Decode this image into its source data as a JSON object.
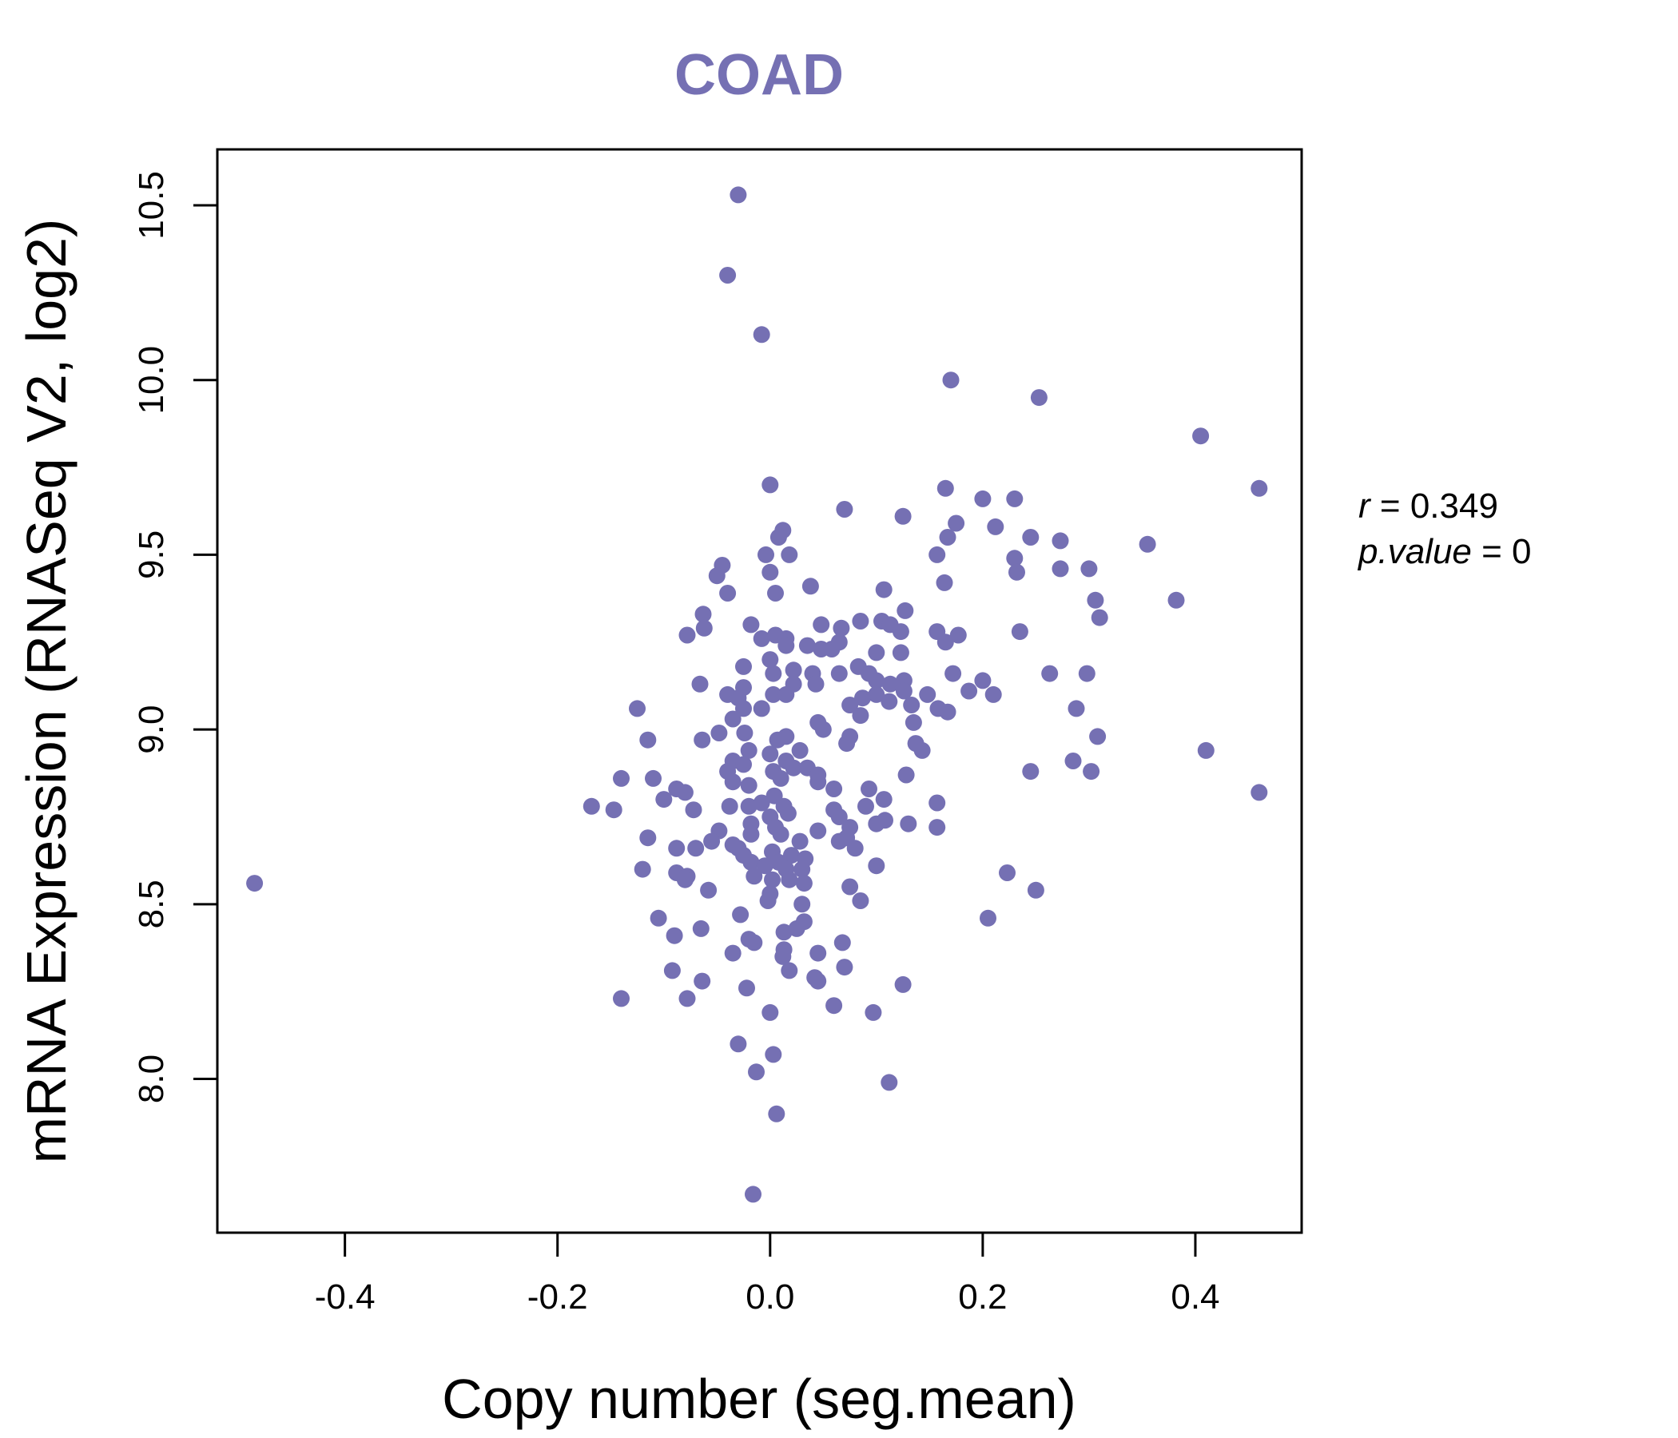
{
  "chart_data": {
    "type": "scatter",
    "title": "COAD",
    "xlabel": "Copy number (seg.mean)",
    "ylabel": "mRNA Expression (RNASeq V2, log2)",
    "xlim": [
      -0.52,
      0.5
    ],
    "ylim": [
      7.56,
      10.66
    ],
    "xticks": [
      -0.4,
      -0.2,
      0.0,
      0.2,
      0.4
    ],
    "xtick_labels": [
      "-0.4",
      "-0.2",
      "0.0",
      "0.2",
      "0.4"
    ],
    "yticks": [
      8.0,
      8.5,
      9.0,
      9.5,
      10.0,
      10.5
    ],
    "ytick_labels": [
      "8.0",
      "8.5",
      "9.0",
      "9.5",
      "10.0",
      "10.5"
    ],
    "grid": false,
    "point_color": "#7570b3",
    "annotation": {
      "r_label": "r",
      "r_value": "0.349",
      "p_label": "p.value",
      "p_value": "0"
    },
    "series": [
      {
        "name": "samples",
        "points": [
          [
            -0.485,
            8.56
          ],
          [
            -0.03,
            10.53
          ],
          [
            -0.04,
            10.3
          ],
          [
            -0.008,
            10.13
          ],
          [
            0.17,
            10.0
          ],
          [
            0.253,
            9.95
          ],
          [
            0.405,
            9.84
          ],
          [
            0.46,
            9.69
          ],
          [
            0.0,
            9.7
          ],
          [
            0.165,
            9.69
          ],
          [
            0.2,
            9.66
          ],
          [
            0.23,
            9.66
          ],
          [
            0.07,
            9.63
          ],
          [
            0.125,
            9.61
          ],
          [
            0.175,
            9.59
          ],
          [
            0.212,
            9.58
          ],
          [
            0.012,
            9.57
          ],
          [
            0.008,
            9.55
          ],
          [
            0.167,
            9.55
          ],
          [
            0.245,
            9.55
          ],
          [
            0.273,
            9.54
          ],
          [
            0.355,
            9.53
          ],
          [
            -0.004,
            9.5
          ],
          [
            0.018,
            9.5
          ],
          [
            0.157,
            9.5
          ],
          [
            0.23,
            9.49
          ],
          [
            -0.045,
            9.47
          ],
          [
            0.0,
            9.45
          ],
          [
            0.232,
            9.45
          ],
          [
            0.273,
            9.46
          ],
          [
            0.3,
            9.46
          ],
          [
            -0.05,
            9.44
          ],
          [
            -0.04,
            9.39
          ],
          [
            0.005,
            9.39
          ],
          [
            0.038,
            9.41
          ],
          [
            0.107,
            9.4
          ],
          [
            0.164,
            9.42
          ],
          [
            0.306,
            9.37
          ],
          [
            0.382,
            9.37
          ],
          [
            0.31,
            9.32
          ],
          [
            -0.063,
            9.33
          ],
          [
            0.127,
            9.34
          ],
          [
            -0.018,
            9.3
          ],
          [
            -0.062,
            9.29
          ],
          [
            -0.078,
            9.27
          ],
          [
            0.048,
            9.3
          ],
          [
            0.067,
            9.29
          ],
          [
            0.085,
            9.31
          ],
          [
            0.105,
            9.31
          ],
          [
            0.113,
            9.3
          ],
          [
            0.123,
            9.28
          ],
          [
            0.157,
            9.28
          ],
          [
            0.177,
            9.27
          ],
          [
            0.235,
            9.28
          ],
          [
            -0.008,
            9.26
          ],
          [
            0.005,
            9.27
          ],
          [
            0.015,
            9.26
          ],
          [
            0.035,
            9.24
          ],
          [
            0.048,
            9.23
          ],
          [
            0.058,
            9.23
          ],
          [
            0.065,
            9.25
          ],
          [
            0.015,
            9.24
          ],
          [
            0.1,
            9.22
          ],
          [
            0.123,
            9.22
          ],
          [
            0.165,
            9.25
          ],
          [
            0.0,
            9.2
          ],
          [
            -0.025,
            9.18
          ],
          [
            0.022,
            9.17
          ],
          [
            0.003,
            9.16
          ],
          [
            0.04,
            9.16
          ],
          [
            0.065,
            9.16
          ],
          [
            0.083,
            9.18
          ],
          [
            0.093,
            9.16
          ],
          [
            0.172,
            9.16
          ],
          [
            0.263,
            9.16
          ],
          [
            0.298,
            9.16
          ],
          [
            -0.066,
            9.13
          ],
          [
            -0.025,
            9.12
          ],
          [
            0.022,
            9.13
          ],
          [
            0.043,
            9.13
          ],
          [
            0.1,
            9.14
          ],
          [
            0.113,
            9.13
          ],
          [
            0.126,
            9.14
          ],
          [
            0.2,
            9.14
          ],
          [
            -0.04,
            9.1
          ],
          [
            -0.03,
            9.09
          ],
          [
            0.003,
            9.1
          ],
          [
            0.015,
            9.1
          ],
          [
            0.075,
            9.07
          ],
          [
            0.087,
            9.09
          ],
          [
            0.1,
            9.1
          ],
          [
            0.112,
            9.08
          ],
          [
            0.126,
            9.11
          ],
          [
            0.148,
            9.1
          ],
          [
            0.187,
            9.11
          ],
          [
            0.21,
            9.1
          ],
          [
            -0.025,
            9.06
          ],
          [
            -0.008,
            9.06
          ],
          [
            0.133,
            9.07
          ],
          [
            0.158,
            9.06
          ],
          [
            0.167,
            9.05
          ],
          [
            -0.125,
            9.06
          ],
          [
            -0.035,
            9.03
          ],
          [
            0.085,
            9.04
          ],
          [
            0.135,
            9.02
          ],
          [
            0.288,
            9.06
          ],
          [
            0.045,
            9.02
          ],
          [
            0.05,
            9.0
          ],
          [
            -0.115,
            8.97
          ],
          [
            -0.064,
            8.97
          ],
          [
            -0.024,
            8.99
          ],
          [
            -0.048,
            8.99
          ],
          [
            0.007,
            8.97
          ],
          [
            0.015,
            8.98
          ],
          [
            0.075,
            8.98
          ],
          [
            0.072,
            8.96
          ],
          [
            0.137,
            8.96
          ],
          [
            0.143,
            8.94
          ],
          [
            0.308,
            8.98
          ],
          [
            0.41,
            8.94
          ],
          [
            -0.02,
            8.94
          ],
          [
            0.0,
            8.93
          ],
          [
            0.028,
            8.94
          ],
          [
            -0.035,
            8.91
          ],
          [
            -0.025,
            8.9
          ],
          [
            0.015,
            8.91
          ],
          [
            0.022,
            8.89
          ],
          [
            0.035,
            8.89
          ],
          [
            0.285,
            8.91
          ],
          [
            -0.04,
            8.88
          ],
          [
            0.003,
            8.88
          ],
          [
            0.01,
            8.86
          ],
          [
            0.045,
            8.87
          ],
          [
            0.128,
            8.87
          ],
          [
            0.245,
            8.88
          ],
          [
            0.302,
            8.88
          ],
          [
            -0.14,
            8.86
          ],
          [
            -0.11,
            8.86
          ],
          [
            -0.035,
            8.85
          ],
          [
            -0.02,
            8.84
          ],
          [
            0.045,
            8.85
          ],
          [
            0.06,
            8.83
          ],
          [
            0.093,
            8.83
          ],
          [
            -0.088,
            8.83
          ],
          [
            -0.08,
            8.82
          ],
          [
            -0.1,
            8.8
          ],
          [
            0.004,
            8.81
          ],
          [
            0.107,
            8.8
          ],
          [
            0.46,
            8.82
          ],
          [
            -0.168,
            8.78
          ],
          [
            -0.147,
            8.77
          ],
          [
            -0.072,
            8.77
          ],
          [
            -0.038,
            8.78
          ],
          [
            -0.02,
            8.78
          ],
          [
            -0.008,
            8.79
          ],
          [
            0.013,
            8.78
          ],
          [
            0.017,
            8.76
          ],
          [
            0.06,
            8.77
          ],
          [
            0.09,
            8.78
          ],
          [
            0.157,
            8.79
          ],
          [
            0.0,
            8.75
          ],
          [
            0.065,
            8.75
          ],
          [
            0.1,
            8.73
          ],
          [
            0.108,
            8.74
          ],
          [
            0.13,
            8.73
          ],
          [
            0.157,
            8.72
          ],
          [
            -0.018,
            8.73
          ],
          [
            0.005,
            8.72
          ],
          [
            0.045,
            8.71
          ],
          [
            0.075,
            8.72
          ],
          [
            -0.048,
            8.71
          ],
          [
            -0.018,
            8.7
          ],
          [
            0.01,
            8.7
          ],
          [
            0.072,
            8.69
          ],
          [
            -0.115,
            8.69
          ],
          [
            -0.055,
            8.68
          ],
          [
            -0.035,
            8.67
          ],
          [
            0.028,
            8.68
          ],
          [
            0.065,
            8.68
          ],
          [
            0.08,
            8.66
          ],
          [
            -0.088,
            8.66
          ],
          [
            -0.07,
            8.66
          ],
          [
            -0.03,
            8.66
          ],
          [
            -0.025,
            8.64
          ],
          [
            0.002,
            8.65
          ],
          [
            0.02,
            8.64
          ],
          [
            0.033,
            8.63
          ],
          [
            -0.018,
            8.62
          ],
          [
            -0.005,
            8.61
          ],
          [
            0.008,
            8.62
          ],
          [
            -0.12,
            8.6
          ],
          [
            -0.088,
            8.59
          ],
          [
            -0.078,
            8.58
          ],
          [
            0.015,
            8.6
          ],
          [
            0.03,
            8.6
          ],
          [
            0.1,
            8.61
          ],
          [
            0.223,
            8.59
          ],
          [
            -0.08,
            8.57
          ],
          [
            -0.015,
            8.58
          ],
          [
            0.002,
            8.57
          ],
          [
            0.018,
            8.57
          ],
          [
            0.032,
            8.56
          ],
          [
            -0.058,
            8.54
          ],
          [
            0.075,
            8.55
          ],
          [
            0.25,
            8.54
          ],
          [
            0.0,
            8.53
          ],
          [
            -0.002,
            8.51
          ],
          [
            0.085,
            8.51
          ],
          [
            0.03,
            8.5
          ],
          [
            -0.028,
            8.47
          ],
          [
            -0.105,
            8.46
          ],
          [
            0.032,
            8.45
          ],
          [
            0.205,
            8.46
          ],
          [
            -0.065,
            8.43
          ],
          [
            0.013,
            8.42
          ],
          [
            0.025,
            8.43
          ],
          [
            -0.09,
            8.41
          ],
          [
            -0.02,
            8.4
          ],
          [
            -0.015,
            8.39
          ],
          [
            0.068,
            8.39
          ],
          [
            0.013,
            8.37
          ],
          [
            -0.035,
            8.36
          ],
          [
            0.045,
            8.36
          ],
          [
            0.012,
            8.35
          ],
          [
            0.07,
            8.32
          ],
          [
            -0.092,
            8.31
          ],
          [
            0.018,
            8.31
          ],
          [
            0.042,
            8.29
          ],
          [
            0.045,
            8.28
          ],
          [
            -0.064,
            8.28
          ],
          [
            -0.022,
            8.26
          ],
          [
            0.125,
            8.27
          ],
          [
            -0.14,
            8.23
          ],
          [
            -0.078,
            8.23
          ],
          [
            0.06,
            8.21
          ],
          [
            0.0,
            8.19
          ],
          [
            0.097,
            8.19
          ],
          [
            -0.03,
            8.1
          ],
          [
            0.003,
            8.07
          ],
          [
            -0.013,
            8.02
          ],
          [
            0.112,
            7.99
          ],
          [
            0.006,
            7.9
          ],
          [
            -0.016,
            7.67
          ]
        ]
      }
    ]
  }
}
